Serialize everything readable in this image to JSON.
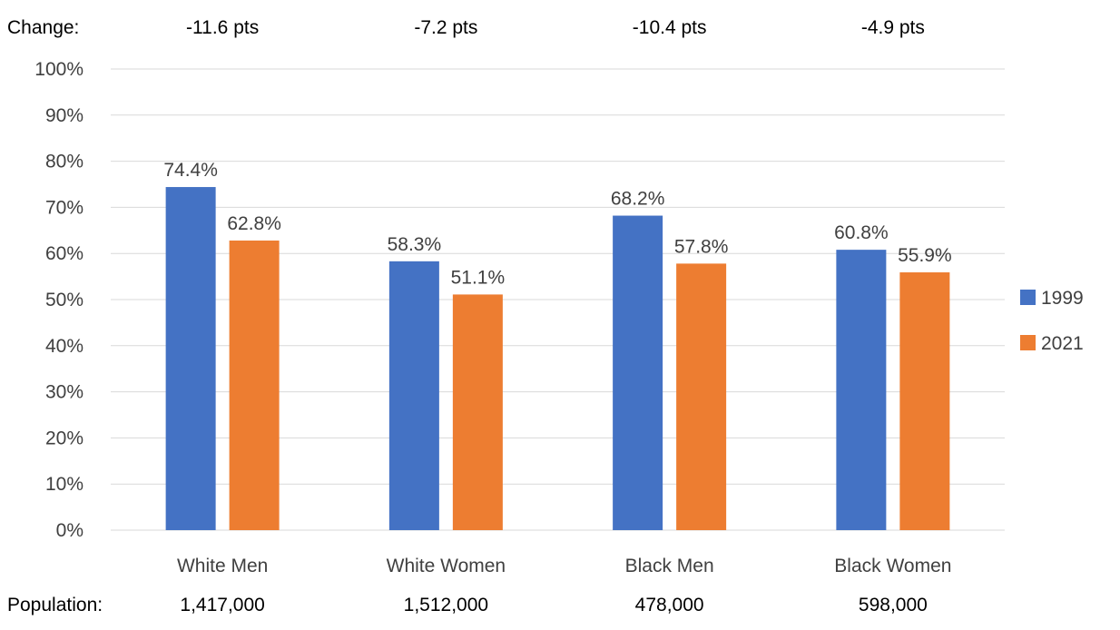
{
  "chart_data": {
    "type": "bar",
    "categories": [
      "White Men",
      "White Women",
      "Black Men",
      "Black Women"
    ],
    "series": [
      {
        "name": "1999",
        "color": "#4472C4",
        "values": [
          74.4,
          58.3,
          68.2,
          60.8
        ],
        "labels": [
          "74.4%",
          "58.3%",
          "68.2%",
          "60.8%"
        ]
      },
      {
        "name": "2021",
        "color": "#ED7D31",
        "values": [
          62.8,
          51.1,
          57.8,
          55.9
        ],
        "labels": [
          "62.8%",
          "51.1%",
          "57.8%",
          "55.9%"
        ]
      }
    ],
    "ylim": [
      0,
      100
    ],
    "yticks": [
      "0%",
      "10%",
      "20%",
      "30%",
      "40%",
      "50%",
      "60%",
      "70%",
      "80%",
      "90%",
      "100%"
    ],
    "grid": true,
    "legend_position": "right",
    "change": {
      "label": "Change:",
      "values": [
        "-11.6 pts",
        "-7.2 pts",
        "-10.4 pts",
        "-4.9 pts"
      ]
    },
    "population": {
      "label": "Population:",
      "values": [
        "1,417,000",
        "1,512,000",
        "478,000",
        "598,000"
      ]
    }
  }
}
